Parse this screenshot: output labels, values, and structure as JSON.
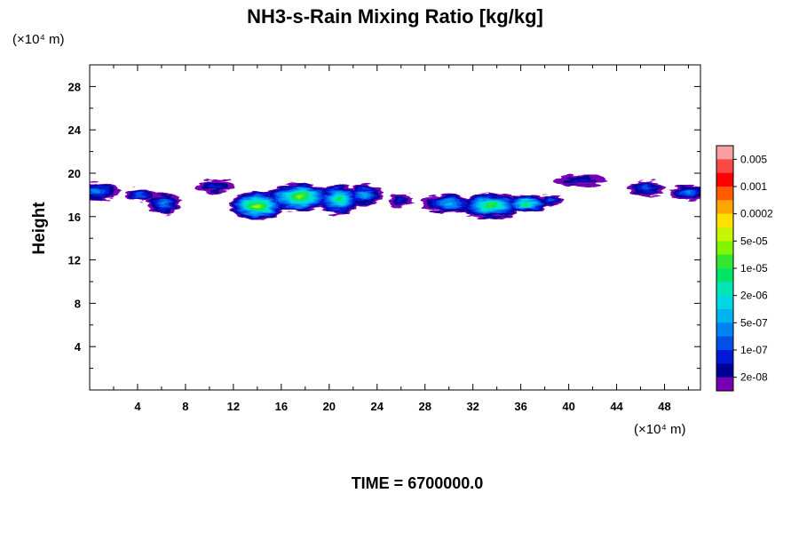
{
  "chart_data": {
    "type": "heatmap",
    "title": "NH3-s-Rain Mixing Ratio [kg/kg]",
    "x_unit": "(×10⁴ m)",
    "y_unit": "(×10⁴ m)",
    "ylabel": "Height",
    "xlabel": "",
    "xlim": [
      0,
      51
    ],
    "ylim": [
      0,
      30
    ],
    "x_ticks": [
      4,
      8,
      12,
      16,
      20,
      24,
      28,
      32,
      36,
      40,
      44,
      48
    ],
    "y_ticks": [
      4,
      8,
      12,
      16,
      20,
      24,
      28
    ],
    "x_minor_step": 2,
    "y_minor_step": 2,
    "grid": false,
    "colorbar": {
      "placement": "right",
      "labels": [
        "0.005",
        "0.001",
        "0.0002",
        "5e-05",
        "1e-05",
        "2e-06",
        "5e-07",
        "1e-07",
        "2e-08"
      ],
      "colors_top_to_bottom": [
        "#f7a0a0",
        "#f84848",
        "#ff0000",
        "#ff5a00",
        "#ffa500",
        "#ffe100",
        "#c8f500",
        "#82f500",
        "#32e632",
        "#00e664",
        "#00e6b4",
        "#00d7e6",
        "#00b4f0",
        "#0082f0",
        "#0050e6",
        "#0019d7",
        "#000096",
        "#7800b4"
      ]
    },
    "cloud_band_level_index": {
      "description_of_levels": "index into colors_top_to_bottom (17 = lowest / purple, 3 = highest shown / orange)",
      "blobs": [
        {
          "x": 0.5,
          "y": 18.3,
          "rx": 2.0,
          "ry": 0.8,
          "peak": 13
        },
        {
          "x": 4.2,
          "y": 18.0,
          "rx": 1.3,
          "ry": 0.6,
          "peak": 14
        },
        {
          "x": 6.2,
          "y": 17.2,
          "rx": 1.4,
          "ry": 1.0,
          "peak": 13
        },
        {
          "x": 10.5,
          "y": 18.8,
          "rx": 1.6,
          "ry": 0.6,
          "peak": 15
        },
        {
          "x": 14.0,
          "y": 17.0,
          "rx": 2.3,
          "ry": 1.3,
          "peak": 6
        },
        {
          "x": 17.5,
          "y": 17.8,
          "rx": 2.8,
          "ry": 1.3,
          "peak": 7
        },
        {
          "x": 20.8,
          "y": 17.6,
          "rx": 1.8,
          "ry": 1.4,
          "peak": 9
        },
        {
          "x": 23.0,
          "y": 18.0,
          "rx": 1.5,
          "ry": 1.0,
          "peak": 12
        },
        {
          "x": 26.0,
          "y": 17.5,
          "rx": 1.0,
          "ry": 0.6,
          "peak": 15
        },
        {
          "x": 30.0,
          "y": 17.2,
          "rx": 2.2,
          "ry": 0.9,
          "peak": 12
        },
        {
          "x": 33.5,
          "y": 17.0,
          "rx": 2.5,
          "ry": 1.2,
          "peak": 8
        },
        {
          "x": 36.5,
          "y": 17.2,
          "rx": 1.8,
          "ry": 0.8,
          "peak": 9
        },
        {
          "x": 38.5,
          "y": 17.5,
          "rx": 1.0,
          "ry": 0.5,
          "peak": 14
        },
        {
          "x": 41.0,
          "y": 19.3,
          "rx": 2.2,
          "ry": 0.5,
          "peak": 15
        },
        {
          "x": 46.5,
          "y": 18.6,
          "rx": 1.6,
          "ry": 0.7,
          "peak": 14
        },
        {
          "x": 50.0,
          "y": 18.2,
          "rx": 1.6,
          "ry": 0.7,
          "peak": 13
        }
      ]
    }
  },
  "footer": {
    "time_label": "TIME = 6700000.0"
  }
}
